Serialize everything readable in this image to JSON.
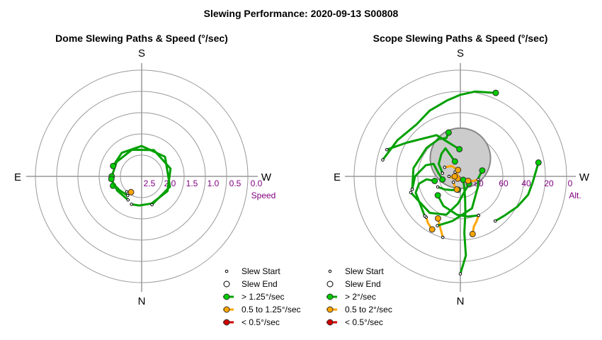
{
  "page_title": "Slewing Performance: 2020-09-13 S00808",
  "colors": {
    "ring": "#999999",
    "axis": "#666666",
    "tick_label": "#800080",
    "fast": "#00a000",
    "fast_marker": "#00cc00",
    "medium": "#ffa500",
    "slow": "#d00000",
    "zenith_fill": "#cccccc",
    "zenith_edge": "#888888"
  },
  "chart_data": [
    {
      "type": "polar",
      "title": "Dome Slewing Paths & Speed (°/sec)",
      "directions": {
        "top": "S",
        "bottom": "N",
        "left": "E",
        "right": "W"
      },
      "radial_label": "Speed",
      "radial_ticks": [
        "2.5",
        "2.0",
        "1.5",
        "1.0",
        "0.5",
        "0.0"
      ],
      "legend": [
        {
          "label": "Slew Start",
          "marker": "start"
        },
        {
          "label": "Slew End",
          "marker": "end"
        },
        {
          "label": "> 1.25°/sec",
          "marker": "fast"
        },
        {
          "label": "0.5 to 1.25°/sec",
          "marker": "medium"
        },
        {
          "label": "< 0.5°/sec",
          "marker": "slow"
        }
      ],
      "paths": [
        {
          "speed": "medium",
          "points": [
            [
              -136,
              1.9
            ],
            [
              -146,
              1.68
            ]
          ]
        },
        {
          "speed": "fast",
          "points": [
            [
              -144,
              2.1
            ],
            [
              -122,
              2.3
            ],
            [
              -107,
              2.55
            ],
            [
              -108,
              2.66
            ]
          ]
        },
        {
          "speed": "fast",
          "points": [
            [
              -160,
              2.62
            ],
            [
              -175,
              2.58
            ],
            [
              160,
              2.55
            ],
            [
              120,
              2.63
            ],
            [
              75,
              2.64
            ],
            [
              25,
              2.56
            ],
            [
              -20,
              2.5
            ],
            [
              -60,
              2.55
            ],
            [
              -90,
              2.64
            ]
          ]
        },
        {
          "speed": "fast",
          "points": [
            [
              160,
              2.66
            ],
            [
              110,
              2.66
            ],
            [
              50,
              2.69
            ],
            [
              0,
              2.68
            ],
            [
              -40,
              2.72
            ],
            [
              -70,
              2.68
            ]
          ]
        },
        {
          "speed": "fast",
          "points": [
            [
              -150,
              2.4
            ],
            [
              -120,
              2.5
            ],
            [
              -100,
              2.6
            ],
            [
              -95,
              2.68
            ]
          ]
        }
      ]
    },
    {
      "type": "polar",
      "title": "Scope Slewing Paths & Speed (°/sec)",
      "directions": {
        "top": "S",
        "bottom": "N",
        "left": "E",
        "right": "W"
      },
      "radial_label": "Alt.",
      "radial_ticks": [
        "80",
        "60",
        "40",
        "20",
        "0"
      ],
      "zenith_exclusion": {
        "azimuth": 0,
        "altitude": 74,
        "radius_deg": 14
      },
      "legend": [
        {
          "label": "Slew Start",
          "marker": "start"
        },
        {
          "label": "Slew End",
          "marker": "end"
        },
        {
          "label": "> 2°/sec",
          "marker": "fast"
        },
        {
          "label": "0.5 to 2°/sec",
          "marker": "medium"
        },
        {
          "label": "< 0.5°/sec",
          "marker": "slow"
        }
      ],
      "paths": [
        {
          "speed": "fast",
          "points": [
            [
              180,
              4
            ],
            [
              176,
              20
            ],
            [
              176,
              40
            ],
            [
              172,
              58
            ],
            [
              168,
              70
            ],
            [
              160,
              80
            ],
            [
              140,
              86
            ]
          ]
        },
        {
          "speed": "medium",
          "points": [
            [
              -164,
              34
            ],
            [
              -158,
              42
            ],
            [
              -152,
              48
            ]
          ]
        },
        {
          "speed": "fast",
          "points": [
            [
              -70,
              21
            ],
            [
              -58,
              34
            ],
            [
              -30,
              48
            ],
            [
              -2,
              66
            ]
          ]
        },
        {
          "speed": "medium",
          "points": [
            [
              -140,
              43
            ],
            [
              -145,
              40
            ],
            [
              -152,
              37
            ]
          ]
        },
        {
          "speed": "medium",
          "points": [
            [
              155,
              52
            ],
            [
              160,
              48
            ],
            [
              165,
              44
            ],
            [
              168,
              38
            ]
          ]
        },
        {
          "speed": "fast",
          "points": [
            [
              155,
              52
            ],
            [
              170,
              54
            ],
            [
              -175,
              56
            ],
            [
              -150,
              60
            ],
            [
              -130,
              64
            ]
          ]
        },
        {
          "speed": "fast",
          "points": [
            [
              -155,
              42
            ],
            [
              -170,
              50
            ],
            [
              160,
              60
            ],
            [
              120,
              72
            ],
            [
              95,
              74
            ],
            [
              75,
              70
            ]
          ]
        },
        {
          "speed": "fast",
          "points": [
            [
              -138,
              43
            ],
            [
              -110,
              48
            ],
            [
              -100,
              53
            ],
            [
              -95,
              60
            ],
            [
              -100,
              67
            ]
          ]
        },
        {
          "speed": "fast",
          "points": [
            [
              -105,
              46
            ],
            [
              -80,
              48
            ],
            [
              -50,
              51
            ],
            [
              -30,
              52
            ],
            [
              -20,
              54
            ],
            [
              -15,
              50
            ]
          ]
        },
        {
          "speed": "fast",
          "points": [
            [
              -78,
              20
            ],
            [
              -60,
              26
            ],
            [
              -40,
              30
            ],
            [
              -25,
              26
            ],
            [
              -10,
              22
            ],
            [
              0,
              18
            ],
            [
              10,
              14
            ],
            [
              23,
              10
            ]
          ]
        },
        {
          "speed": "fast",
          "points": [
            [
              142,
              40
            ],
            [
              132,
              38
            ],
            [
              118,
              33
            ],
            [
              105,
              28
            ],
            [
              95,
              26
            ],
            [
              80,
              20
            ]
          ]
        },
        {
          "speed": "fast",
          "points": [
            [
              -108,
              44
            ],
            [
              -140,
              48
            ],
            [
              -160,
              54
            ],
            [
              -175,
              66
            ],
            [
              165,
              76
            ],
            [
              130,
              80
            ]
          ]
        },
        {
          "speed": "fast",
          "points": [
            [
              -105,
              46
            ],
            [
              -90,
              50
            ],
            [
              -72,
              58
            ],
            [
              -65,
              64
            ],
            [
              -80,
              70
            ],
            [
              -100,
              74
            ]
          ]
        },
        {
          "speed": "fast",
          "points": [
            [
              -115,
              68
            ],
            [
              -130,
              72
            ],
            [
              -150,
              76
            ],
            [
              -170,
              78
            ]
          ]
        },
        {
          "speed": "fast",
          "points": [
            [
              -80,
              74
            ],
            [
              -60,
              68
            ],
            [
              -40,
              64
            ],
            [
              -28,
              62
            ],
            [
              -20,
              76
            ]
          ]
        },
        {
          "speed": "medium",
          "points": [
            [
              -130,
              82
            ],
            [
              -150,
              80
            ],
            [
              -165,
              78
            ]
          ]
        },
        {
          "speed": "medium",
          "points": [
            [
              -90,
              80
            ],
            [
              -110,
              84
            ],
            [
              -130,
              87
            ]
          ]
        },
        {
          "speed": "medium",
          "points": [
            [
              -50,
              84
            ],
            [
              -70,
              88
            ],
            [
              -90,
              85
            ]
          ]
        },
        {
          "speed": "medium",
          "points": [
            [
              100,
              74
            ],
            [
              110,
              78
            ],
            [
              120,
              82
            ]
          ]
        },
        {
          "speed": "medium",
          "points": [
            [
              -60,
              74
            ],
            [
              -40,
              78
            ],
            [
              -20,
              84
            ]
          ]
        }
      ]
    }
  ]
}
